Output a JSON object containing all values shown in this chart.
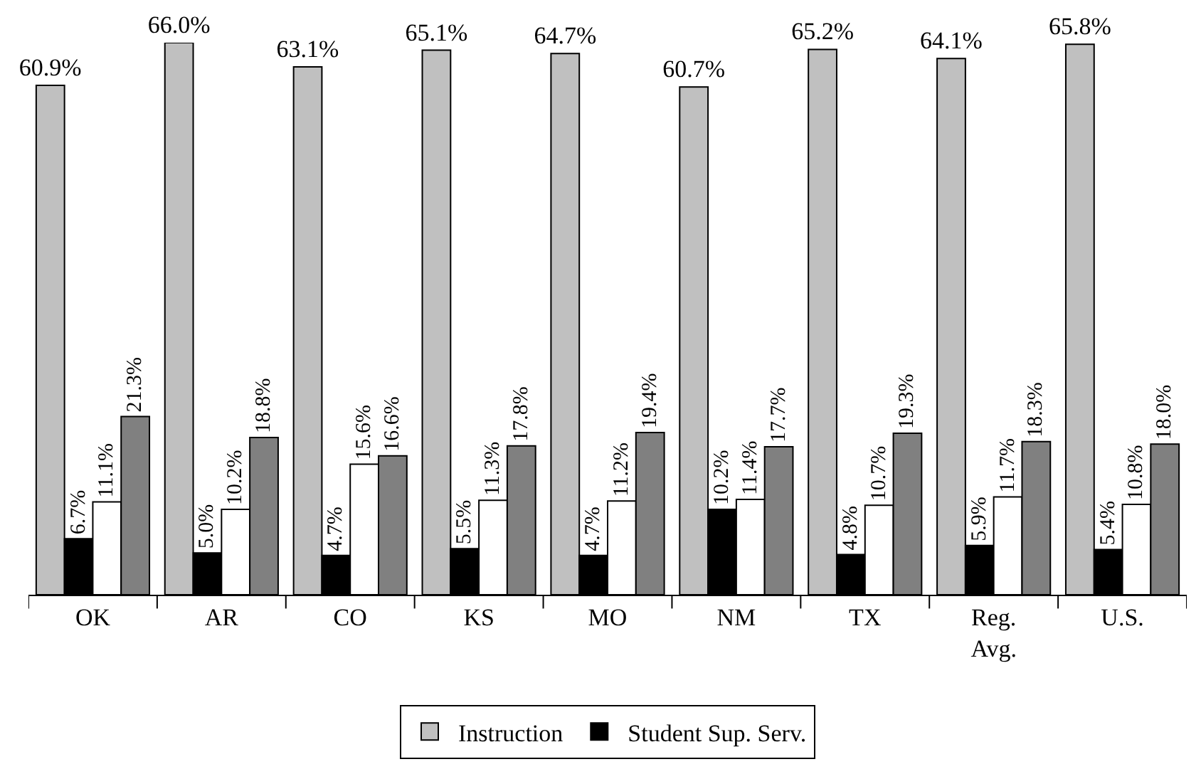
{
  "chart_data": {
    "type": "bar",
    "categories": [
      "OK",
      "AR",
      "CO",
      "KS",
      "MO",
      "NM",
      "TX",
      "Reg.\nAvg.",
      "U.S."
    ],
    "series": [
      {
        "name": "Instruction",
        "color": "#c0c0c0",
        "values": [
          60.9,
          66.0,
          63.1,
          65.1,
          64.7,
          60.7,
          65.2,
          64.1,
          65.8
        ],
        "value_labels": [
          "60.9%",
          "66.0%",
          "63.1%",
          "65.1%",
          "64.7%",
          "60.7%",
          "65.2%",
          "64.1%",
          "65.8%"
        ]
      },
      {
        "name": "Student Sup. Serv.",
        "color": "#000000",
        "values": [
          6.7,
          5.0,
          4.7,
          5.5,
          4.7,
          10.2,
          4.8,
          5.9,
          5.4
        ],
        "value_labels": [
          "6.7%",
          "5.0%",
          "4.7%",
          "5.5%",
          "4.7%",
          "10.2%",
          "4.8%",
          "5.9%",
          "5.4%"
        ]
      },
      {
        "color": "#ffffff",
        "values": [
          11.1,
          10.2,
          15.6,
          11.3,
          11.2,
          11.4,
          10.7,
          11.7,
          10.8
        ],
        "value_labels": [
          "11.1%",
          "10.2%",
          "15.6%",
          "11.3%",
          "11.2%",
          "11.4%",
          "10.7%",
          "11.7%",
          "10.8%"
        ]
      },
      {
        "color": "#808080",
        "values": [
          21.3,
          18.8,
          16.6,
          17.8,
          19.4,
          17.7,
          19.3,
          18.3,
          18.0
        ],
        "value_labels": [
          "21.3%",
          "18.8%",
          "16.6%",
          "17.8%",
          "19.4%",
          "17.7%",
          "19.3%",
          "18.3%",
          "18.0%"
        ]
      }
    ],
    "legend": "bottom"
  }
}
